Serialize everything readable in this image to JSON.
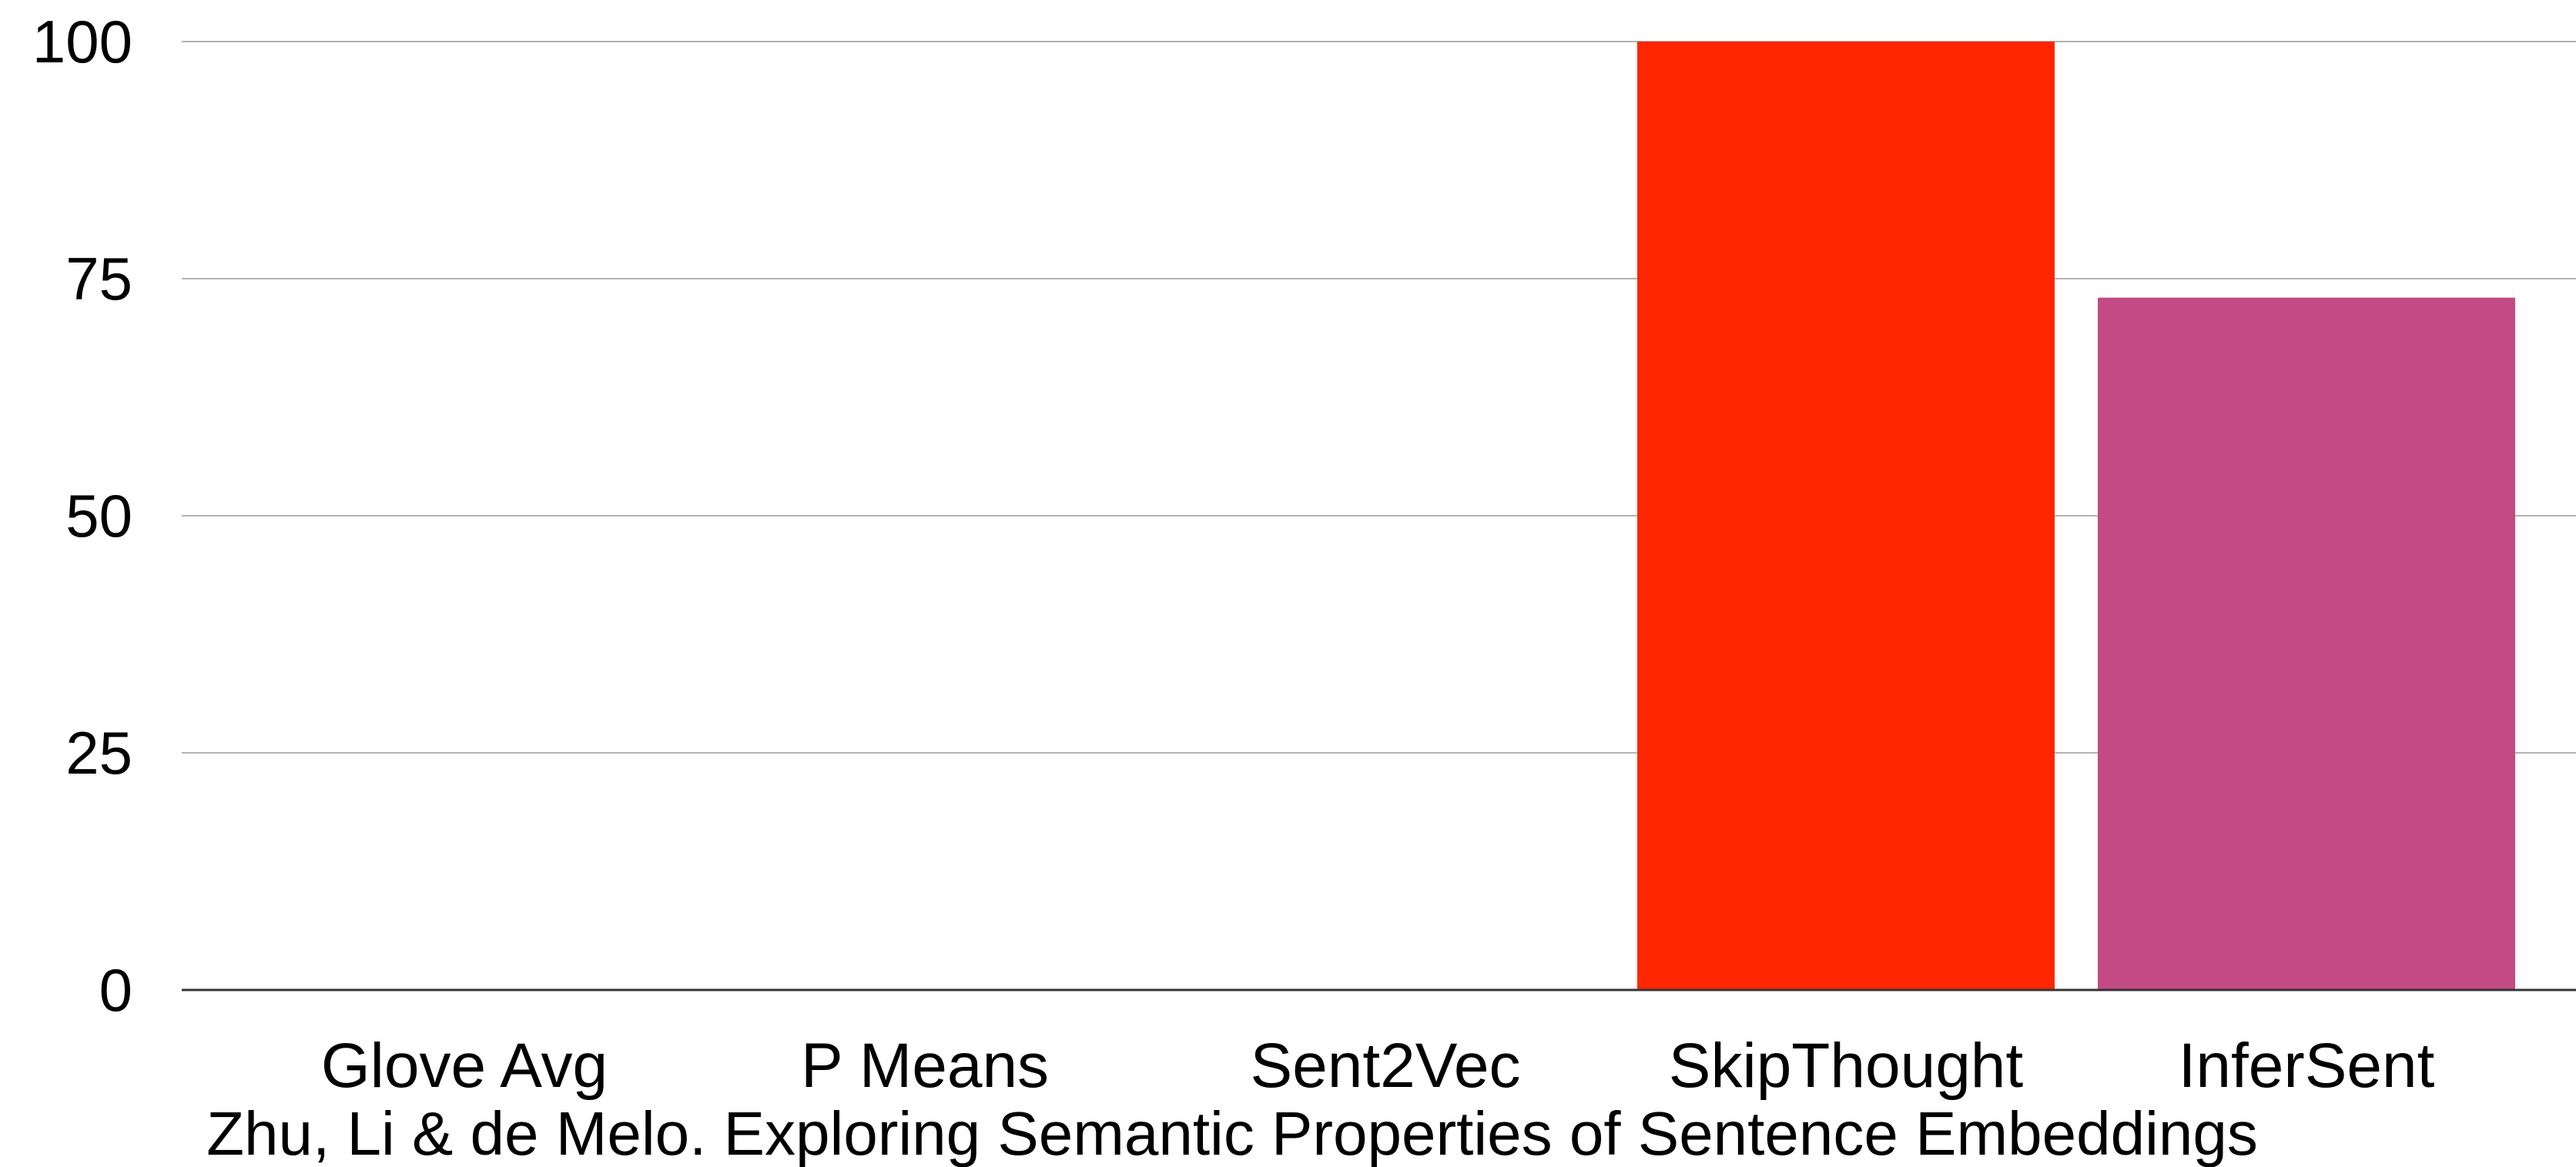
{
  "chart_data": {
    "type": "bar",
    "categories": [
      "Glove Avg",
      "P Means",
      "Sent2Vec",
      "SkipThought",
      "InferSent"
    ],
    "values": [
      0,
      0,
      0,
      100,
      73
    ],
    "colors": [
      "#ffffff",
      "#ffffff",
      "#ffffff",
      "#ff2600",
      "#c34a84"
    ],
    "ylim": [
      0,
      100
    ],
    "yticks": [
      0,
      25,
      50,
      75,
      100
    ],
    "grid": true,
    "caption": "Zhu, Li & de Melo. Exploring Semantic Properties of Sentence Embeddings"
  }
}
